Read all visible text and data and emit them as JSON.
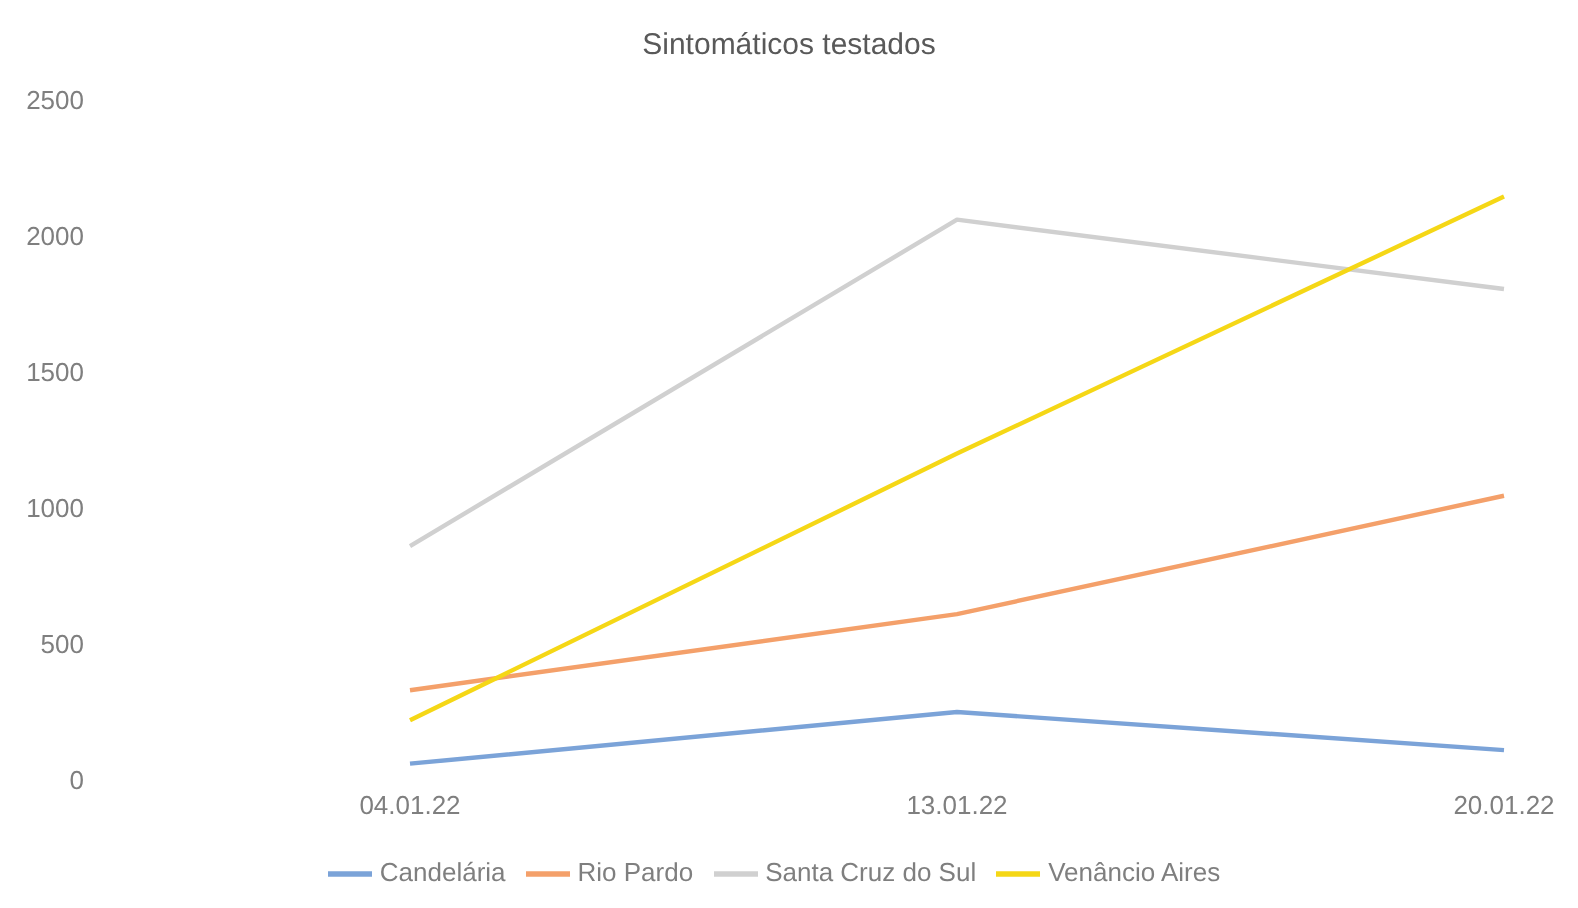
{
  "chart_data": {
    "type": "line",
    "title": "Sintomáticos testados",
    "categories": [
      "04.01.22",
      "13.01.22",
      "20.01.22"
    ],
    "series": [
      {
        "name": "Candelária",
        "color": "#7ba3d8",
        "values": [
          60,
          250,
          110
        ]
      },
      {
        "name": "Rio Pardo",
        "color": "#f4a06a",
        "values": [
          330,
          610,
          1045
        ]
      },
      {
        "name": "Santa Cruz do Sul",
        "color": "#d0d0d0",
        "values": [
          860,
          2060,
          1805
        ]
      },
      {
        "name": "Venâncio Aires",
        "color": "#f5d716",
        "values": [
          220,
          1200,
          2145
        ]
      }
    ],
    "ylim": [
      0,
      2500
    ],
    "yticks": [
      0,
      500,
      1000,
      1500,
      2000,
      2500
    ],
    "grid": false,
    "legend": "bottom",
    "marker": "none",
    "line_style": "solid"
  }
}
